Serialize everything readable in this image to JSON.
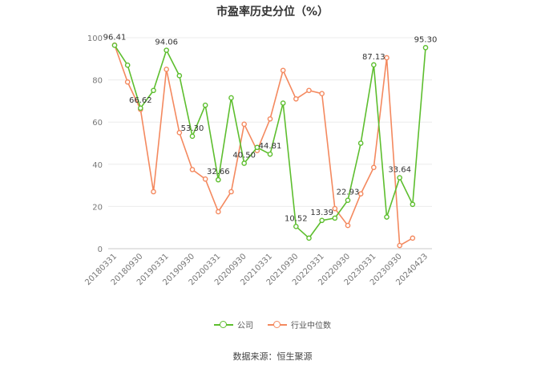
{
  "chart_data": {
    "type": "line",
    "title": "市盈率历史分位（%）",
    "source": "数据来源：恒生聚源",
    "ylim": [
      0,
      100
    ],
    "yticks": [
      0,
      20,
      40,
      60,
      80,
      100
    ],
    "grid": true,
    "legend_position": "bottom",
    "x": [
      "20180331",
      "20180630",
      "20180930",
      "20181231",
      "20190331",
      "20190630",
      "20190930",
      "20191231",
      "20200331",
      "20200630",
      "20200930",
      "20201231",
      "20210331",
      "20210630",
      "20210930",
      "20211231",
      "20220331",
      "20220630",
      "20220930",
      "20221231",
      "20230331",
      "20230630",
      "20230930",
      "20231231",
      "20240423"
    ],
    "x_tick_labels": [
      "20180331",
      "20180930",
      "20190331",
      "20190930",
      "20200331",
      "20200930",
      "20210331",
      "20210930",
      "20220331",
      "20220930",
      "20230331",
      "20230930",
      "20240423"
    ],
    "series": [
      {
        "name": "公司",
        "color": "#5dbe2e",
        "values": [
          96.41,
          87,
          66.62,
          75,
          94.06,
          82,
          53.3,
          68,
          32.66,
          71.5,
          40.5,
          48,
          44.81,
          69,
          10.52,
          5,
          13.39,
          14.5,
          22.93,
          50,
          87.13,
          15,
          33.64,
          21,
          95.3
        ],
        "data_labels": [
          {
            "index": 0,
            "text": "96.41"
          },
          {
            "index": 2,
            "text": "66.62"
          },
          {
            "index": 4,
            "text": "94.06"
          },
          {
            "index": 6,
            "text": "53.30"
          },
          {
            "index": 8,
            "text": "32.66"
          },
          {
            "index": 10,
            "text": "40.50"
          },
          {
            "index": 12,
            "text": "44.81"
          },
          {
            "index": 14,
            "text": "10.52"
          },
          {
            "index": 16,
            "text": "13.39"
          },
          {
            "index": 18,
            "text": "22.93"
          },
          {
            "index": 20,
            "text": "87.13"
          },
          {
            "index": 22,
            "text": "33.64"
          },
          {
            "index": 24,
            "text": "95.30"
          }
        ]
      },
      {
        "name": "行业中位数",
        "color": "#f4895f",
        "values": [
          96.5,
          79,
          66,
          27,
          85,
          55,
          37.5,
          33,
          17.5,
          27,
          59,
          46.5,
          61.5,
          84.5,
          71,
          75,
          73.5,
          19,
          11,
          26,
          38.5,
          90.5,
          1.5,
          5,
          null
        ],
        "data_labels": []
      }
    ]
  }
}
